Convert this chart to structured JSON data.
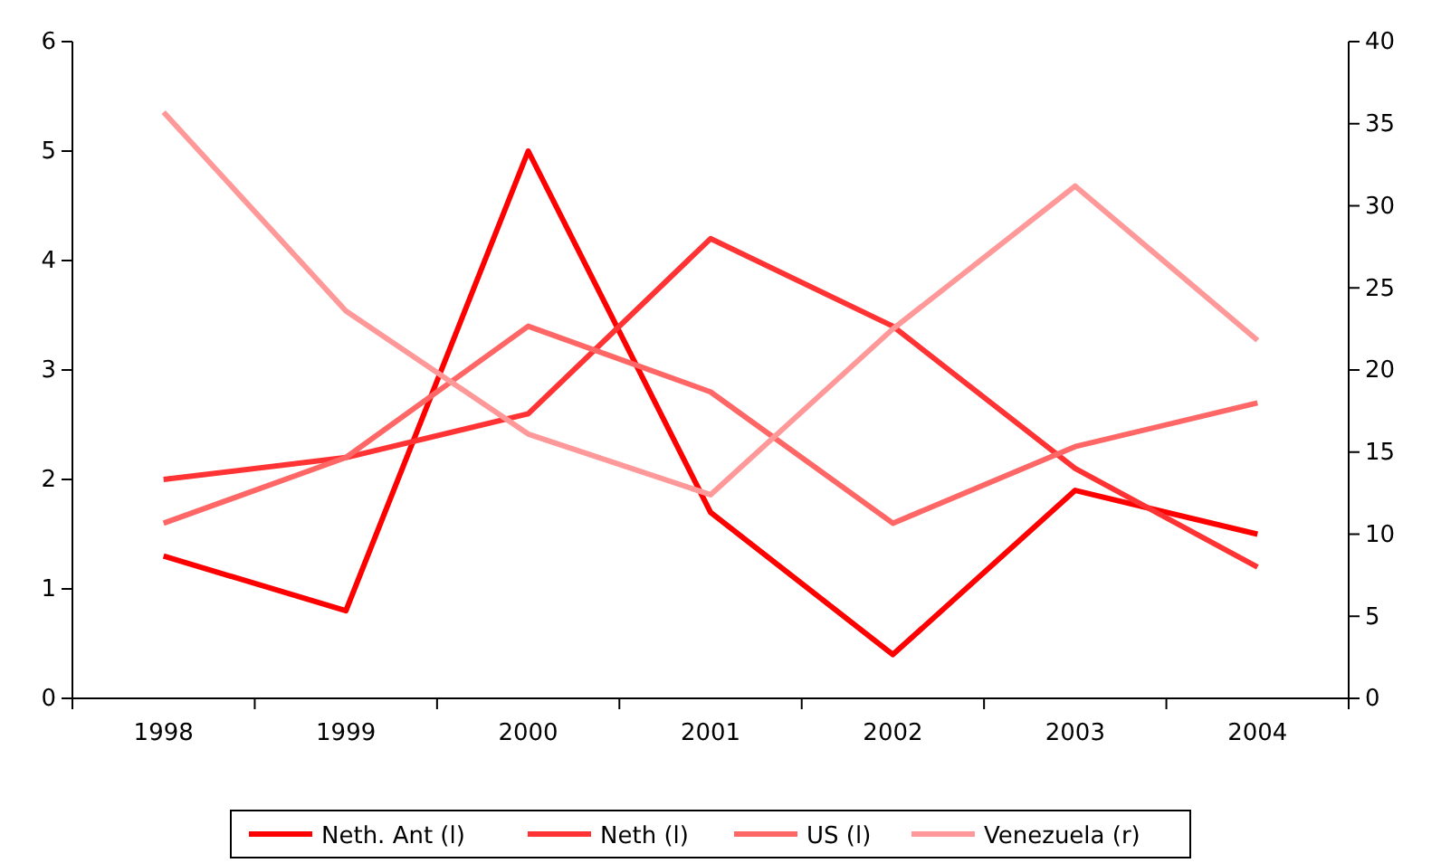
{
  "chart_data": {
    "type": "line",
    "categories": [
      "1998",
      "1999",
      "2000",
      "2001",
      "2002",
      "2003",
      "2004"
    ],
    "series": [
      {
        "name": "Neth. Ant (l)",
        "color": "#ff0000",
        "values": [
          1.3,
          0.8,
          5.0,
          1.7,
          0.4,
          1.9,
          1.5
        ]
      },
      {
        "name": "Neth (l)",
        "color": "#ff3333",
        "values": [
          2.0,
          2.2,
          2.6,
          4.2,
          3.4,
          2.1,
          1.2
        ]
      },
      {
        "name": "US (l)",
        "color": "#ff6666",
        "values": [
          1.6,
          2.2,
          3.4,
          2.8,
          1.6,
          2.3,
          2.7
        ]
      },
      {
        "name": "Venezuela (r)",
        "color": "#ff9999",
        "axis": "y2",
        "values": [
          35.7,
          23.6,
          16.1,
          12.4,
          22.5,
          31.2,
          21.8
        ]
      }
    ],
    "ylim": [
      0,
      6
    ],
    "yticks": [
      0,
      1,
      2,
      3,
      4,
      5,
      6
    ],
    "y2lim": [
      0,
      40
    ],
    "y2ticks": [
      0,
      5,
      10,
      15,
      20,
      25,
      30,
      35,
      40
    ],
    "grid": false,
    "legend": "bottom",
    "marker": "none",
    "line_style": "solid"
  }
}
